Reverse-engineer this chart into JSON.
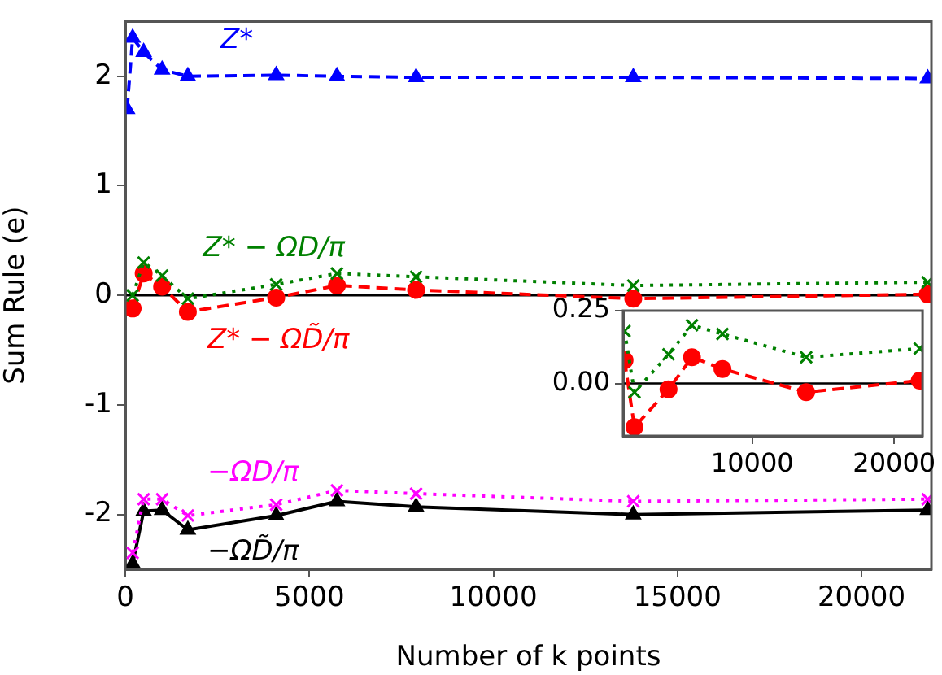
{
  "chart_data": [
    {
      "type": "line",
      "xlabel": "Number of k points",
      "ylabel": "Sum Rule (e)",
      "x": [
        50,
        200,
        500,
        1000,
        1700,
        4100,
        5750,
        7900,
        13800,
        21800
      ],
      "series": [
        {
          "name": "Z* − ΩD/π",
          "color": "#008000",
          "marker": "cross",
          "line_style": "dotted",
          "values": [
            null,
            0.0,
            0.3,
            0.18,
            -0.03,
            0.1,
            0.2,
            0.17,
            0.09,
            0.12
          ]
        },
        {
          "name": "Z*",
          "color": "#0000ff",
          "marker": "triangle",
          "line_style": "dashed",
          "values": [
            1.7,
            2.35,
            2.22,
            2.06,
            2.0,
            2.01,
            2.0,
            1.99,
            1.99,
            1.98
          ]
        },
        {
          "name": "Z* − ΩD̃/π",
          "color": "#ff0000",
          "marker": "circle",
          "line_style": "dashed",
          "values": [
            null,
            -0.12,
            0.2,
            0.08,
            -0.15,
            -0.02,
            0.09,
            0.05,
            -0.03,
            0.01
          ]
        },
        {
          "name": "−ΩD/π",
          "color": "#ff00ff",
          "marker": "cross",
          "line_style": "dotted",
          "values": [
            null,
            -2.35,
            -1.86,
            -1.86,
            -2.01,
            -1.91,
            -1.78,
            -1.81,
            -1.88,
            -1.86
          ]
        },
        {
          "name": "−ΩD̃/π",
          "color": "#000000",
          "marker": "triangle",
          "line_style": "solid",
          "values": [
            null,
            -2.45,
            -1.97,
            -1.96,
            -2.14,
            -2.01,
            -1.88,
            -1.93,
            -2.0,
            -1.96
          ]
        }
      ],
      "xlim": [
        0,
        21900
      ],
      "xticks": [
        0,
        5000,
        10000,
        15000,
        20000
      ],
      "ylim": [
        -2.5,
        2.5
      ],
      "yticks": [
        -2,
        -1,
        0,
        1,
        2
      ],
      "ref_lines": [
        {
          "axis": "y",
          "value": 0,
          "color": "#000000"
        }
      ],
      "grid": false,
      "legend": false
    },
    {
      "type": "line",
      "x": [
        1000,
        1700,
        4100,
        5750,
        7900,
        13800,
        21800
      ],
      "series": [
        {
          "color": "#008000",
          "marker": "cross",
          "line_style": "dotted",
          "values": [
            0.18,
            -0.03,
            0.1,
            0.2,
            0.17,
            0.09,
            0.12
          ]
        },
        {
          "color": "#ff0000",
          "marker": "circle",
          "line_style": "dashed",
          "values": [
            0.08,
            -0.15,
            -0.02,
            0.09,
            0.05,
            -0.03,
            0.01
          ]
        }
      ],
      "xlim": [
        900,
        22000
      ],
      "xticks": [
        10000,
        20000
      ],
      "ylim": [
        -0.18,
        0.25
      ],
      "yticks": [
        {
          "value": 0,
          "label": "0.00"
        },
        {
          "value": 0.25,
          "label": "0.25"
        }
      ],
      "ref_lines": [
        {
          "axis": "y",
          "value": 0,
          "color": "#000000"
        }
      ],
      "grid": false,
      "legend": false
    }
  ]
}
